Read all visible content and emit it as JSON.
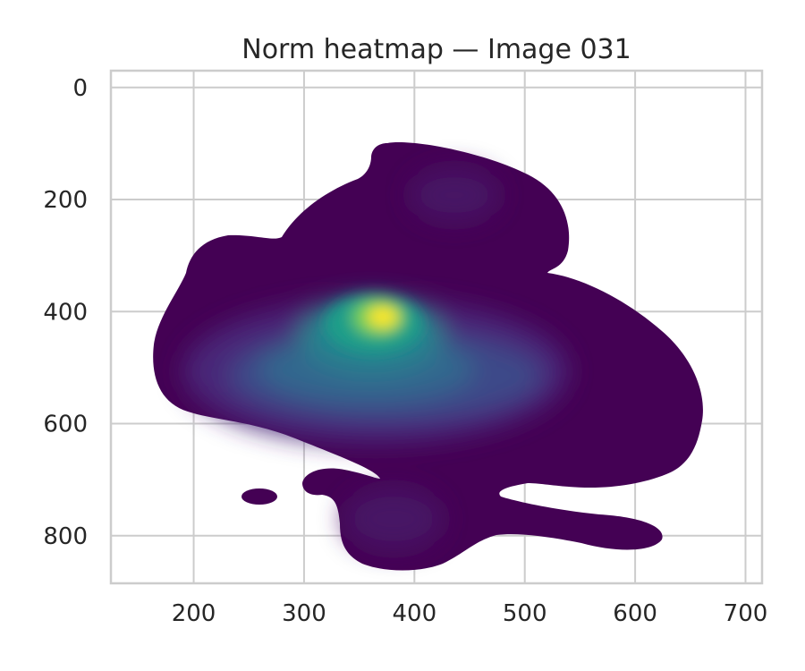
{
  "chart_data": {
    "type": "heatmap",
    "subtype": "kde-density-contour",
    "title": "Norm heatmap — Image 031",
    "xlabel": "",
    "ylabel": "",
    "xlim": [
      125,
      715
    ],
    "ylim": [
      885,
      -30
    ],
    "y_inverted": true,
    "xticks": [
      200,
      300,
      400,
      500,
      600,
      700
    ],
    "yticks": [
      0,
      200,
      400,
      600,
      800
    ],
    "grid": true,
    "colormap": "viridis",
    "colors": {
      "low": "#440154",
      "mid": "#21918c",
      "high": "#fde725",
      "grid": "#cccccc",
      "axes_edge": "#cccccc",
      "text": "#262626",
      "background": "#ffffff"
    },
    "density_peaks": [
      {
        "x": 378,
        "y": 412,
        "level": 1.0
      },
      {
        "x": 470,
        "y": 440,
        "level": 0.45
      },
      {
        "x": 250,
        "y": 460,
        "level": 0.35
      },
      {
        "x": 560,
        "y": 470,
        "level": 0.3
      },
      {
        "x": 440,
        "y": 195,
        "level": 0.15
      },
      {
        "x": 395,
        "y": 780,
        "level": 0.12
      },
      {
        "x": 600,
        "y": 795,
        "level": 0.06
      }
    ]
  }
}
